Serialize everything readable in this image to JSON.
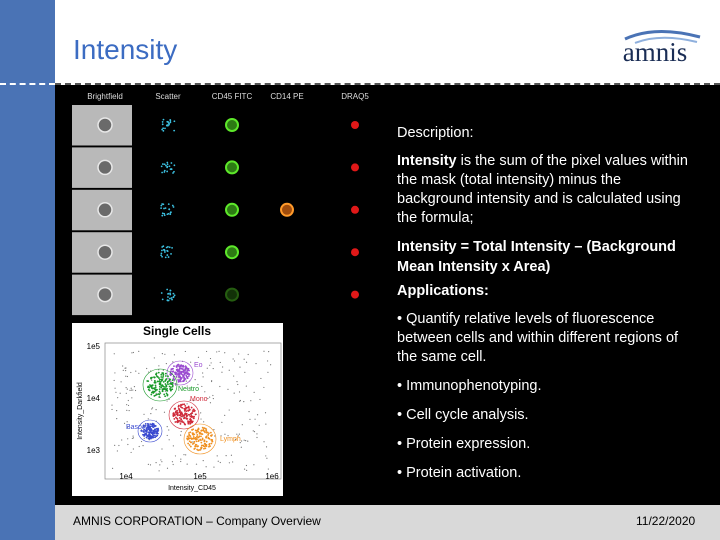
{
  "header": {
    "title": "Intensity",
    "logo": "amnis"
  },
  "image_panel": {
    "columns": [
      "Brightfield",
      "Scatter",
      "CD45 FITC",
      "CD14 PE",
      "DRAQ5"
    ]
  },
  "plot": {
    "title": "Single Cells",
    "y_label": "Intensity_Darkfield",
    "x_label": "Intensity_CD45",
    "y_ticks": [
      "1e5",
      "1e4",
      "1e3"
    ],
    "x_ticks": [
      "1e4",
      "1e5",
      "1e6"
    ],
    "populations": [
      "Eo",
      "Neutro",
      "Mono",
      "Baso",
      "Lymph"
    ]
  },
  "text": {
    "description_label": "Description:",
    "definition_term": "Intensity",
    "definition_rest": " is the sum of the pixel values within the mask (total intensity) minus the background intensity and is calculated using the formula;",
    "formula": "Intensity = Total Intensity – (Background Mean Intensity x Area)",
    "applications_label": "Applications:",
    "bullets": [
      "• Quantify relative levels of fluorescence between cells and within different regions of the same cell.",
      "• Immunophenotyping.",
      "• Cell cycle analysis.",
      "• Protein expression.",
      "• Protein activation."
    ]
  },
  "footer": {
    "left": "AMNIS CORPORATION – Company Overview",
    "right": "11/22/2020"
  }
}
